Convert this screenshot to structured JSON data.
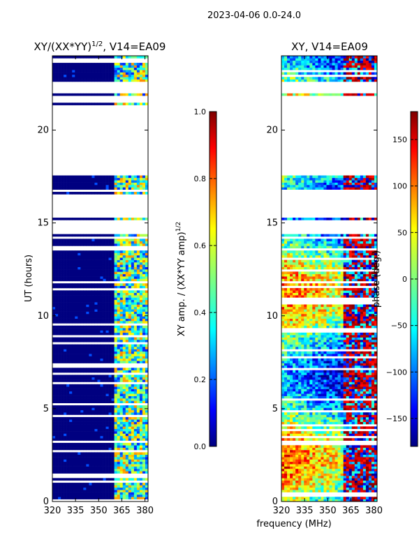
{
  "suptitle": "2023-04-06 0.0-24.0",
  "chart_data": [
    {
      "type": "heatmap",
      "title": "XY/(XX*YY)",
      "title_sup": "1/2",
      "title_suffix": ", V14=EA09",
      "xlabel": "",
      "ylabel": "UT (hours)",
      "xlim": [
        320,
        382
      ],
      "ylim": [
        0,
        24
      ],
      "xticks": [
        320,
        335,
        350,
        365,
        380
      ],
      "yticks": [
        0,
        5,
        10,
        15,
        20
      ],
      "colormap": "jet",
      "colorbar": {
        "label": "XY amp. / (XX*YY amp)",
        "label_sup": "1/2",
        "range": [
          0.0,
          1.0
        ],
        "ticks": [
          "0.0",
          "0.2",
          "0.4",
          "0.6",
          "0.8",
          "1.0"
        ],
        "tick_values": [
          0.0,
          0.2,
          0.4,
          0.6,
          0.8,
          1.0
        ]
      },
      "data_time_ranges_hours": [
        [
          0.0,
          14.4
        ],
        [
          15.1,
          15.3
        ],
        [
          16.5,
          17.6
        ],
        [
          21.4,
          21.5
        ],
        [
          21.9,
          22.0
        ],
        [
          22.6,
          24.0
        ]
      ],
      "bright_band_mhz": [
        361,
        382
      ]
    },
    {
      "type": "heatmap",
      "title": "XY, V14=EA09",
      "xlabel": "frequency (MHz)",
      "ylabel": "",
      "xlim": [
        320,
        382
      ],
      "ylim": [
        0,
        24
      ],
      "xticks": [
        320,
        335,
        350,
        365,
        380
      ],
      "yticks": [
        0,
        5,
        10,
        15,
        20
      ],
      "colormap": "jet",
      "colorbar": {
        "label": "phase (deg.)",
        "range": [
          -180,
          180
        ],
        "ticks": [
          "−150",
          "−100",
          "−50",
          "0",
          "50",
          "100",
          "150"
        ],
        "tick_values": [
          -150,
          -100,
          -50,
          0,
          50,
          100,
          150
        ]
      },
      "data_time_ranges_hours": [
        [
          0.0,
          14.4
        ],
        [
          15.1,
          15.3
        ],
        [
          16.5,
          17.6
        ],
        [
          21.4,
          21.5
        ],
        [
          21.9,
          22.0
        ],
        [
          22.6,
          24.0
        ]
      ]
    }
  ],
  "colors": {
    "jet": [
      "#00007f",
      "#0000ff",
      "#007fff",
      "#00ffff",
      "#7fff7f",
      "#ffff00",
      "#ff7f00",
      "#ff0000",
      "#7f0000"
    ]
  }
}
